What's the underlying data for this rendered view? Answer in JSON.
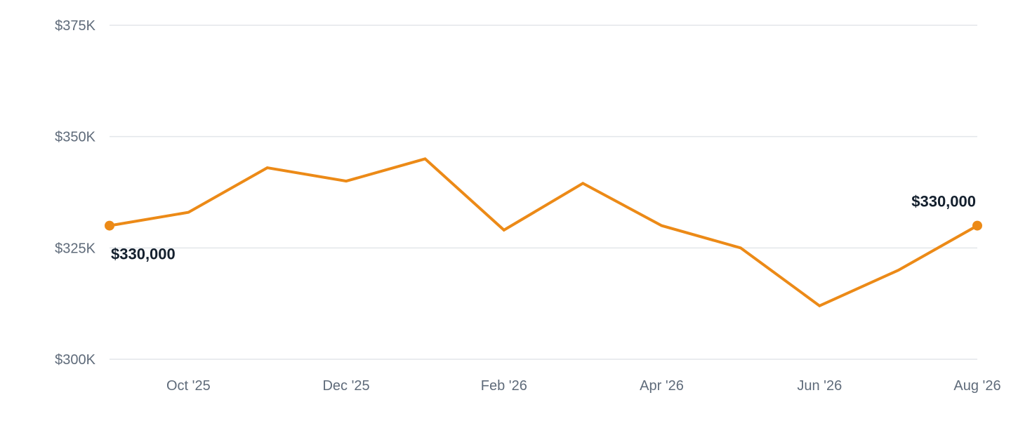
{
  "chart_data": {
    "type": "line",
    "title": "",
    "xlabel": "",
    "ylabel": "",
    "grid": true,
    "ylim": [
      300000,
      375000
    ],
    "y_ticks": [
      {
        "value": 300000,
        "label": "$300K"
      },
      {
        "value": 325000,
        "label": "$325K"
      },
      {
        "value": 350000,
        "label": "$350K"
      },
      {
        "value": 375000,
        "label": "$375K"
      }
    ],
    "x_ticks": [
      {
        "index": 1,
        "label": "Oct '25"
      },
      {
        "index": 3,
        "label": "Dec '25"
      },
      {
        "index": 5,
        "label": "Feb '26"
      },
      {
        "index": 7,
        "label": "Apr '26"
      },
      {
        "index": 9,
        "label": "Jun '26"
      },
      {
        "index": 11,
        "label": "Aug '26"
      }
    ],
    "x": [
      "Sep '25",
      "Oct '25",
      "Nov '25",
      "Dec '25",
      "Jan '26",
      "Feb '26",
      "Mar '26",
      "Apr '26",
      "May '26",
      "Jun '26",
      "Jul '26",
      "Aug '26"
    ],
    "series": [
      {
        "color": "#ec8a17",
        "values": [
          330000,
          333000,
          343000,
          340000,
          345000,
          329000,
          339500,
          330000,
          325000,
          312000,
          320000,
          330000
        ]
      }
    ],
    "annotations": [
      {
        "index": 0,
        "text": "$330,000",
        "position": "below-right"
      },
      {
        "index": 11,
        "text": "$330,000",
        "position": "above-left"
      }
    ]
  }
}
